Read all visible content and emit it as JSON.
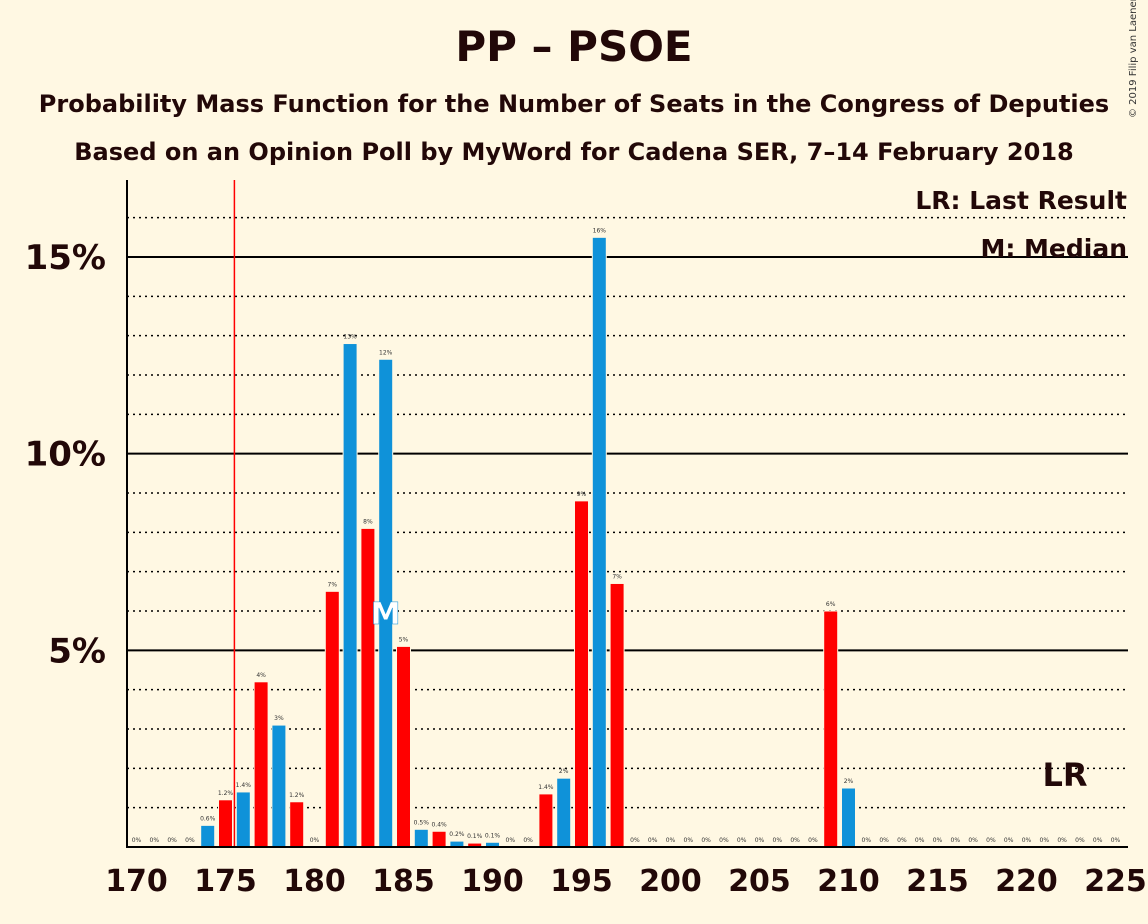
{
  "title": "PP – PSOE",
  "subtitle1": "Probability Mass Function for the Number of Seats in the Congress of Deputies",
  "subtitle2": "Based on an Opinion Poll by MyWord for Cadena SER, 7–14 February 2018",
  "copyright": "© 2019 Filip van Laenen",
  "colors": {
    "pp": "#0f92d9",
    "psoe": "#ff0000",
    "background": "#fff8e3",
    "last_result_line": "#ff0000"
  },
  "chart_data": {
    "type": "bar",
    "xlim": [
      170,
      225
    ],
    "ylim": [
      0,
      17
    ],
    "x_ticks": [
      "170",
      "175",
      "180",
      "185",
      "190",
      "195",
      "200",
      "205",
      "210",
      "215",
      "220",
      "225"
    ],
    "y_ticks": [
      {
        "value": 5,
        "label": "5%"
      },
      {
        "value": 10,
        "label": "10%"
      },
      {
        "value": 15,
        "label": "15%"
      }
    ],
    "grid": "dotted every 1%, solid every 5%",
    "legend": {
      "last_result": "LR: Last Result",
      "median": "M: Median"
    },
    "last_result": {
      "seats": 176,
      "label": "LR"
    },
    "median": {
      "seats": 184,
      "label": "M"
    },
    "bars": [
      {
        "seats": 170,
        "value": 0.0,
        "label": "0%",
        "party": "pp"
      },
      {
        "seats": 171,
        "value": 0.0,
        "label": "0%",
        "party": "psoe"
      },
      {
        "seats": 172,
        "value": 0.0,
        "label": "0%",
        "party": "pp"
      },
      {
        "seats": 173,
        "value": 0.0,
        "label": "0%",
        "party": "psoe"
      },
      {
        "seats": 174,
        "value": 0.55,
        "label": "0.6%",
        "party": "pp"
      },
      {
        "seats": 175,
        "value": 1.2,
        "label": "1.2%",
        "party": "psoe"
      },
      {
        "seats": 176,
        "value": 1.4,
        "label": "1.4%",
        "party": "pp"
      },
      {
        "seats": 177,
        "value": 4.2,
        "label": "4%",
        "party": "psoe"
      },
      {
        "seats": 178,
        "value": 3.1,
        "label": "3%",
        "party": "pp"
      },
      {
        "seats": 179,
        "value": 1.15,
        "label": "1.2%",
        "party": "psoe"
      },
      {
        "seats": 180,
        "value": 0.0,
        "label": "0%",
        "party": "pp"
      },
      {
        "seats": 181,
        "value": 6.5,
        "label": "7%",
        "party": "psoe"
      },
      {
        "seats": 182,
        "value": 12.8,
        "label": "13%",
        "party": "pp"
      },
      {
        "seats": 183,
        "value": 8.1,
        "label": "8%",
        "party": "psoe"
      },
      {
        "seats": 184,
        "value": 12.4,
        "label": "12%",
        "party": "pp"
      },
      {
        "seats": 185,
        "value": 5.1,
        "label": "5%",
        "party": "psoe"
      },
      {
        "seats": 186,
        "value": 0.45,
        "label": "0.5%",
        "party": "pp"
      },
      {
        "seats": 187,
        "value": 0.4,
        "label": "0.4%",
        "party": "psoe"
      },
      {
        "seats": 188,
        "value": 0.15,
        "label": "0.2%",
        "party": "pp"
      },
      {
        "seats": 189,
        "value": 0.1,
        "label": "0.1%",
        "party": "psoe"
      },
      {
        "seats": 190,
        "value": 0.12,
        "label": "0.1%",
        "party": "pp"
      },
      {
        "seats": 191,
        "value": 0.0,
        "label": "0%",
        "party": "psoe"
      },
      {
        "seats": 192,
        "value": 0.0,
        "label": "0%",
        "party": "pp"
      },
      {
        "seats": 193,
        "value": 1.35,
        "label": "1.4%",
        "party": "psoe"
      },
      {
        "seats": 194,
        "value": 1.75,
        "label": "2%",
        "party": "pp"
      },
      {
        "seats": 195,
        "value": 8.8,
        "label": "9%",
        "party": "psoe"
      },
      {
        "seats": 196,
        "value": 15.5,
        "label": "16%",
        "party": "pp"
      },
      {
        "seats": 197,
        "value": 6.7,
        "label": "7%",
        "party": "psoe"
      },
      {
        "seats": 198,
        "value": 0.0,
        "label": "0%",
        "party": "pp"
      },
      {
        "seats": 199,
        "value": 0.0,
        "label": "0%",
        "party": "psoe"
      },
      {
        "seats": 200,
        "value": 0.0,
        "label": "0%",
        "party": "pp"
      },
      {
        "seats": 201,
        "value": 0.0,
        "label": "0%",
        "party": "psoe"
      },
      {
        "seats": 202,
        "value": 0.0,
        "label": "0%",
        "party": "pp"
      },
      {
        "seats": 203,
        "value": 0.0,
        "label": "0%",
        "party": "psoe"
      },
      {
        "seats": 204,
        "value": 0.0,
        "label": "0%",
        "party": "pp"
      },
      {
        "seats": 205,
        "value": 0.0,
        "label": "0%",
        "party": "psoe"
      },
      {
        "seats": 206,
        "value": 0.0,
        "label": "0%",
        "party": "pp"
      },
      {
        "seats": 207,
        "value": 0.0,
        "label": "0%",
        "party": "psoe"
      },
      {
        "seats": 208,
        "value": 0.0,
        "label": "0%",
        "party": "pp"
      },
      {
        "seats": 209,
        "value": 6.0,
        "label": "6%",
        "party": "psoe"
      },
      {
        "seats": 210,
        "value": 1.5,
        "label": "2%",
        "party": "pp"
      },
      {
        "seats": 211,
        "value": 0.0,
        "label": "0%",
        "party": "psoe"
      },
      {
        "seats": 212,
        "value": 0.0,
        "label": "0%",
        "party": "pp"
      },
      {
        "seats": 213,
        "value": 0.0,
        "label": "0%",
        "party": "psoe"
      },
      {
        "seats": 214,
        "value": 0.0,
        "label": "0%",
        "party": "pp"
      },
      {
        "seats": 215,
        "value": 0.0,
        "label": "0%",
        "party": "psoe"
      },
      {
        "seats": 216,
        "value": 0.0,
        "label": "0%",
        "party": "pp"
      },
      {
        "seats": 217,
        "value": 0.0,
        "label": "0%",
        "party": "psoe"
      },
      {
        "seats": 218,
        "value": 0.0,
        "label": "0%",
        "party": "pp"
      },
      {
        "seats": 219,
        "value": 0.0,
        "label": "0%",
        "party": "psoe"
      },
      {
        "seats": 220,
        "value": 0.0,
        "label": "0%",
        "party": "pp"
      },
      {
        "seats": 221,
        "value": 0.0,
        "label": "0%",
        "party": "psoe"
      },
      {
        "seats": 222,
        "value": 0.0,
        "label": "0%",
        "party": "pp"
      },
      {
        "seats": 223,
        "value": 0.0,
        "label": "0%",
        "party": "psoe"
      },
      {
        "seats": 224,
        "value": 0.0,
        "label": "0%",
        "party": "pp"
      },
      {
        "seats": 225,
        "value": 0.0,
        "label": "0%",
        "party": "psoe"
      }
    ]
  }
}
